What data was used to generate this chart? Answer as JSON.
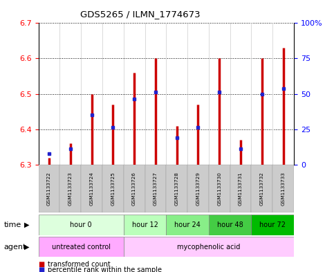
{
  "title": "GDS5265 / ILMN_1774673",
  "samples": [
    "GSM1133722",
    "GSM1133723",
    "GSM1133724",
    "GSM1133725",
    "GSM1133726",
    "GSM1133727",
    "GSM1133728",
    "GSM1133729",
    "GSM1133730",
    "GSM1133731",
    "GSM1133732",
    "GSM1133733"
  ],
  "bar_values": [
    6.32,
    6.36,
    6.5,
    6.47,
    6.56,
    6.6,
    6.41,
    6.47,
    6.6,
    6.37,
    6.6,
    6.63
  ],
  "bar_base": 6.3,
  "percentile_values": [
    6.33,
    6.345,
    6.44,
    6.405,
    6.485,
    6.505,
    6.375,
    6.405,
    6.505,
    6.345,
    6.5,
    6.515
  ],
  "ylim": [
    6.3,
    6.7
  ],
  "yticks_left": [
    6.3,
    6.4,
    6.5,
    6.6,
    6.7
  ],
  "yticks_right": [
    0,
    25,
    50,
    75,
    100
  ],
  "bar_color": "#cc0000",
  "percentile_color": "#2222cc",
  "background_color": "#ffffff",
  "time_groups": [
    {
      "label": "hour 0",
      "start": 0,
      "end": 3
    },
    {
      "label": "hour 12",
      "start": 4,
      "end": 5
    },
    {
      "label": "hour 24",
      "start": 6,
      "end": 7
    },
    {
      "label": "hour 48",
      "start": 8,
      "end": 9
    },
    {
      "label": "hour 72",
      "start": 10,
      "end": 11
    }
  ],
  "time_colors": [
    "#ddffdd",
    "#bbffbb",
    "#88ee88",
    "#44cc44",
    "#00bb00"
  ],
  "agent_groups": [
    {
      "label": "untreated control",
      "start": 0,
      "end": 3
    },
    {
      "label": "mycophenolic acid",
      "start": 4,
      "end": 11
    }
  ],
  "agent_colors": [
    "#ffaaff",
    "#ffccff"
  ],
  "time_label": "time",
  "agent_label": "agent",
  "legend1": "transformed count",
  "legend2": "percentile rank within the sample"
}
